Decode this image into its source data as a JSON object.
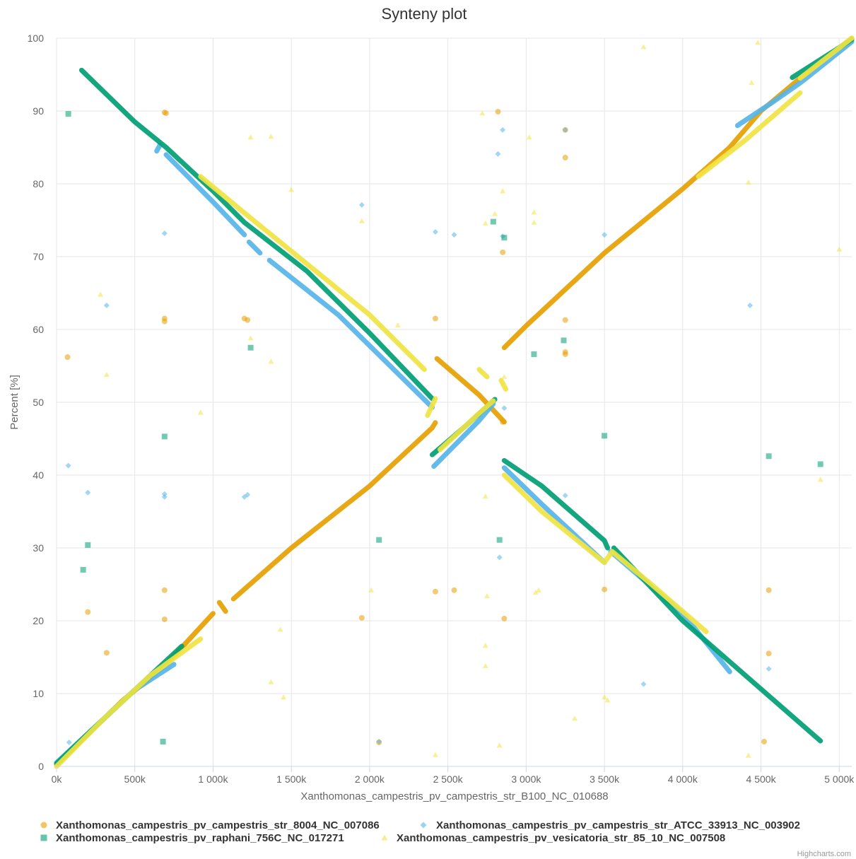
{
  "chart_data": {
    "type": "scatter",
    "title": "Synteny plot",
    "xlabel": "Xanthomonas_campestris_pv_campestris_str_B100_NC_010688",
    "ylabel": "Percent [%]",
    "xlim": [
      0,
      5080000
    ],
    "ylim": [
      0,
      100
    ],
    "grid": true,
    "legend": "bottom",
    "credits": "Highcharts.com",
    "x_ticks": [
      {
        "value": 0,
        "label": "0k"
      },
      {
        "value": 500000,
        "label": "500k"
      },
      {
        "value": 1000000,
        "label": "1 000k"
      },
      {
        "value": 1500000,
        "label": "1 500k"
      },
      {
        "value": 2000000,
        "label": "2 000k"
      },
      {
        "value": 2500000,
        "label": "2 500k"
      },
      {
        "value": 3000000,
        "label": "3 000k"
      },
      {
        "value": 3500000,
        "label": "3 500k"
      },
      {
        "value": 4000000,
        "label": "4 000k"
      },
      {
        "value": 4500000,
        "label": "4 500k"
      },
      {
        "value": 5000000,
        "label": "5 000k"
      }
    ],
    "y_ticks": [
      {
        "value": 0,
        "label": "0"
      },
      {
        "value": 10,
        "label": "10"
      },
      {
        "value": 20,
        "label": "20"
      },
      {
        "value": 30,
        "label": "30"
      },
      {
        "value": 40,
        "label": "40"
      },
      {
        "value": 50,
        "label": "50"
      },
      {
        "value": 60,
        "label": "60"
      },
      {
        "value": 70,
        "label": "70"
      },
      {
        "value": 80,
        "label": "80"
      },
      {
        "value": 90,
        "label": "90"
      },
      {
        "value": 100,
        "label": "100"
      }
    ],
    "series": [
      {
        "name": "Xanthomonas_campestris_pv_campestris_str_8004_NC_007086",
        "color": "#E69F00",
        "marker": "circle",
        "segments": [
          [
            [
              0,
              0.2
            ],
            [
              420000,
              9
            ],
            [
              700000,
              14
            ],
            [
              1000000,
              21
            ]
          ],
          [
            [
              1040000,
              22.5
            ],
            [
              1080000,
              21.3
            ]
          ],
          [
            [
              1130000,
              23
            ],
            [
              1500000,
              30
            ],
            [
              2000000,
              38.5
            ],
            [
              2400000,
              46.5
            ],
            [
              2420000,
              47.2
            ]
          ],
          [
            [
              2430000,
              56
            ],
            [
              2700000,
              51
            ],
            [
              2860000,
              47.3
            ]
          ],
          [
            [
              2860000,
              57.5
            ],
            [
              3000000,
              60.5
            ],
            [
              3500000,
              70.5
            ],
            [
              4000000,
              79.3
            ],
            [
              4300000,
              85
            ],
            [
              4500000,
              90
            ],
            [
              4750000,
              94.5
            ],
            [
              5080000,
              100
            ]
          ]
        ],
        "points": [
          [
            70000,
            56.2
          ],
          [
            690000,
            89.8
          ],
          [
            700000,
            89.7
          ],
          [
            690000,
            61.5
          ],
          [
            690000,
            61.1
          ],
          [
            690000,
            24.2
          ],
          [
            690000,
            20.2
          ],
          [
            200000,
            21.2
          ],
          [
            320000,
            15.6
          ],
          [
            1200000,
            61.5
          ],
          [
            1220000,
            61.3
          ],
          [
            1950000,
            20.4
          ],
          [
            2060000,
            3.3
          ],
          [
            2420000,
            61.5
          ],
          [
            2420000,
            24
          ],
          [
            2540000,
            24.2
          ],
          [
            2820000,
            89.9
          ],
          [
            2850000,
            70.6
          ],
          [
            2850000,
            47.3
          ],
          [
            2860000,
            20.3
          ],
          [
            3250000,
            83.6
          ],
          [
            3250000,
            61.3
          ],
          [
            3250000,
            56.9
          ],
          [
            3250000,
            56.6
          ],
          [
            3250000,
            87.4
          ],
          [
            3500000,
            24.3
          ],
          [
            4550000,
            24.2
          ],
          [
            4550000,
            15.5
          ],
          [
            4520000,
            3.4
          ]
        ]
      },
      {
        "name": "Xanthomonas_campestris_pv_campestris_str_ATCC_33913_NC_003902",
        "color": "#56B4E9",
        "marker": "diamond",
        "segments": [
          [
            [
              0,
              0.5
            ],
            [
              500000,
              10.5
            ],
            [
              750000,
              14
            ]
          ],
          [
            [
              640000,
              84.5
            ],
            [
              660000,
              85.3
            ]
          ],
          [
            [
              700000,
              84
            ],
            [
              1000000,
              77.5
            ],
            [
              1200000,
              73
            ]
          ],
          [
            [
              1230000,
              72
            ],
            [
              1300000,
              70.5
            ]
          ],
          [
            [
              1360000,
              69.5
            ],
            [
              1800000,
              62
            ],
            [
              2400000,
              49.3
            ]
          ],
          [
            [
              2410000,
              41.2
            ],
            [
              2700000,
              47.5
            ],
            [
              2790000,
              49.8
            ]
          ],
          [
            [
              2860000,
              41
            ],
            [
              3100000,
              36
            ],
            [
              3500000,
              28
            ]
          ],
          [
            [
              3540000,
              29.5
            ],
            [
              4000000,
              21
            ],
            [
              4300000,
              13
            ]
          ],
          [
            [
              4350000,
              88
            ],
            [
              4560000,
              91
            ],
            [
              4760000,
              94
            ],
            [
              5080000,
              99.5
            ]
          ]
        ],
        "points": [
          [
            80000,
            3.3
          ],
          [
            75000,
            41.3
          ],
          [
            200000,
            37.6
          ],
          [
            320000,
            63.3
          ],
          [
            690000,
            73.2
          ],
          [
            690000,
            37.4
          ],
          [
            690000,
            37
          ],
          [
            1200000,
            37
          ],
          [
            1220000,
            37.3
          ],
          [
            1950000,
            77.1
          ],
          [
            2060000,
            3.4
          ],
          [
            2420000,
            73.4
          ],
          [
            2540000,
            73
          ],
          [
            2820000,
            84.1
          ],
          [
            2830000,
            28.7
          ],
          [
            2850000,
            87.4
          ],
          [
            2850000,
            72.8
          ],
          [
            2860000,
            49.2
          ],
          [
            3250000,
            87.4
          ],
          [
            3250000,
            37.2
          ],
          [
            3500000,
            73
          ],
          [
            3750000,
            11.3
          ],
          [
            4430000,
            63.3
          ],
          [
            4550000,
            13.4
          ]
        ]
      },
      {
        "name": "Xanthomonas_campestris_pv_raphani_756C_NC_017271",
        "color": "#009E73",
        "marker": "square",
        "segments": [
          [
            [
              0,
              0.4
            ],
            [
              300000,
              6.5
            ],
            [
              600000,
              12.5
            ],
            [
              800000,
              16.5
            ]
          ],
          [
            [
              160000,
              95.6
            ],
            [
              500000,
              88.5
            ],
            [
              700000,
              85
            ],
            [
              1000000,
              79
            ],
            [
              1200000,
              74.7
            ],
            [
              1600000,
              68
            ],
            [
              2000000,
              59.5
            ],
            [
              2400000,
              50.5
            ]
          ],
          [
            [
              2400000,
              42.8
            ],
            [
              2600000,
              46.5
            ],
            [
              2800000,
              50.4
            ]
          ],
          [
            [
              2860000,
              42
            ],
            [
              3100000,
              38.5
            ],
            [
              3500000,
              31
            ],
            [
              3520000,
              30
            ]
          ],
          [
            [
              3560000,
              30
            ],
            [
              4000000,
              20
            ],
            [
              4880000,
              3.5
            ]
          ],
          [
            [
              4700000,
              94.6
            ],
            [
              5080000,
              99.8
            ]
          ]
        ],
        "points": [
          [
            75000,
            89.6
          ],
          [
            170000,
            27
          ],
          [
            200000,
            30.4
          ],
          [
            690000,
            45.3
          ],
          [
            680000,
            3.4
          ],
          [
            1240000,
            57.5
          ],
          [
            2060000,
            31.1
          ],
          [
            2790000,
            74.8
          ],
          [
            2830000,
            31.1
          ],
          [
            2860000,
            72.6
          ],
          [
            3050000,
            56.6
          ],
          [
            3240000,
            58.5
          ],
          [
            3500000,
            45.4
          ],
          [
            4550000,
            42.6
          ],
          [
            4880000,
            41.5
          ]
        ]
      },
      {
        "name": "Xanthomonas_campestris_pv_vesicatoria_str_85_10_NC_007508",
        "color": "#F0E442",
        "marker": "triangle",
        "segments": [
          [
            [
              0,
              0
            ],
            [
              300000,
              6.5
            ],
            [
              600000,
              12.5
            ],
            [
              920000,
              17.5
            ]
          ],
          [
            [
              920000,
              81
            ],
            [
              1200000,
              76
            ],
            [
              1600000,
              69
            ],
            [
              2000000,
              62
            ],
            [
              2350000,
              54.5
            ]
          ],
          [
            [
              2370000,
              48.2
            ],
            [
              2420000,
              50.5
            ]
          ],
          [
            [
              2450000,
              43.5
            ],
            [
              2700000,
              48.5
            ],
            [
              2790000,
              50.2
            ]
          ],
          [
            [
              2700000,
              54.5
            ],
            [
              2750000,
              53.5
            ]
          ],
          [
            [
              2840000,
              53
            ],
            [
              2870000,
              51.8
            ]
          ],
          [
            [
              2860000,
              40
            ],
            [
              3100000,
              35
            ],
            [
              3500000,
              28
            ],
            [
              3550000,
              29.5
            ],
            [
              3800000,
              25
            ],
            [
              4150000,
              18.5
            ]
          ],
          [
            [
              4100000,
              81
            ],
            [
              4400000,
              86
            ],
            [
              4750000,
              92.5
            ]
          ],
          [
            [
              4750000,
              94.5
            ],
            [
              5080000,
              100
            ]
          ]
        ],
        "points": [
          [
            280000,
            64.8
          ],
          [
            320000,
            53.8
          ],
          [
            920000,
            48.6
          ],
          [
            1240000,
            86.4
          ],
          [
            1240000,
            58.8
          ],
          [
            1370000,
            86.5
          ],
          [
            1370000,
            55.6
          ],
          [
            1370000,
            11.6
          ],
          [
            1430000,
            18.8
          ],
          [
            1450000,
            9.5
          ],
          [
            1500000,
            79.2
          ],
          [
            1950000,
            74.9
          ],
          [
            2010000,
            24.2
          ],
          [
            2180000,
            60.6
          ],
          [
            2420000,
            1.6
          ],
          [
            2720000,
            89.7
          ],
          [
            2740000,
            74.6
          ],
          [
            2740000,
            37.1
          ],
          [
            2740000,
            16.6
          ],
          [
            2740000,
            13.8
          ],
          [
            2750000,
            23.4
          ],
          [
            2800000,
            75.9
          ],
          [
            2830000,
            2.9
          ],
          [
            2850000,
            79
          ],
          [
            2860000,
            53.5
          ],
          [
            3020000,
            86.4
          ],
          [
            3050000,
            76.1
          ],
          [
            3050000,
            74.7
          ],
          [
            3060000,
            23.9
          ],
          [
            3080000,
            24.2
          ],
          [
            3310000,
            6.6
          ],
          [
            3500000,
            9.5
          ],
          [
            3520000,
            9.1
          ],
          [
            3750000,
            98.8
          ],
          [
            4420000,
            80.2
          ],
          [
            4440000,
            93.9
          ],
          [
            4480000,
            99.4
          ],
          [
            4420000,
            1.5
          ],
          [
            4880000,
            39.4
          ],
          [
            5000000,
            71
          ]
        ]
      }
    ]
  }
}
